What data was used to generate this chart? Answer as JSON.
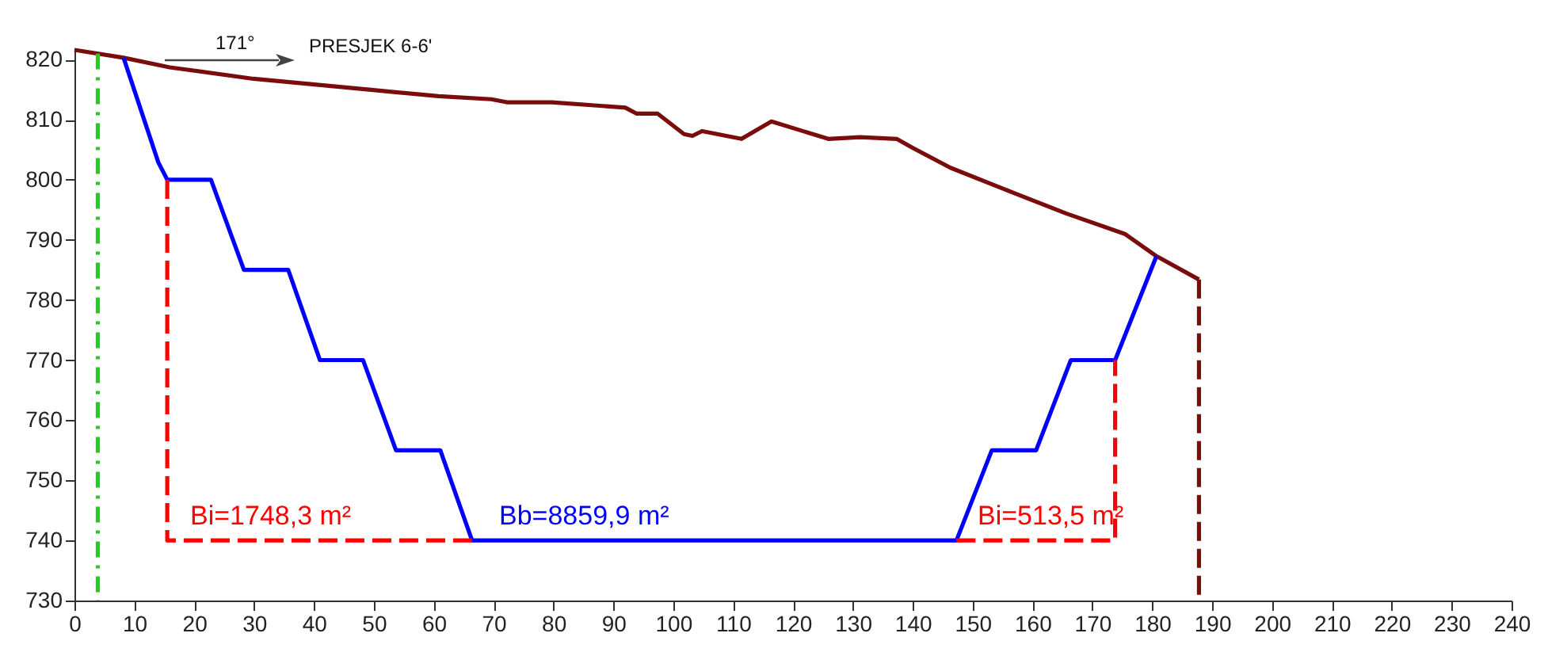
{
  "chart_data": {
    "type": "line",
    "xlim": [
      0,
      240
    ],
    "ylim": [
      730,
      822
    ],
    "xticks": [
      0,
      10,
      20,
      30,
      40,
      50,
      60,
      70,
      80,
      90,
      100,
      110,
      120,
      130,
      140,
      150,
      160,
      170,
      180,
      190,
      200,
      210,
      220,
      230,
      240
    ],
    "yticks": [
      730,
      740,
      750,
      760,
      770,
      780,
      790,
      800,
      810,
      820
    ],
    "grid": false,
    "marker": "none",
    "series": [
      {
        "color": "#7b0c0c",
        "line_style": "solid",
        "x": [
          0,
          8.2,
          15.9,
          29.9,
          49.2,
          60.8,
          69.6,
          72.2,
          79.7,
          92,
          93.9,
          97.4,
          101.8,
          103.2,
          104.8,
          111.4,
          116.4,
          125.9,
          131.2,
          137.3,
          140.2,
          146.3,
          156.9,
          165.6,
          175.4,
          180.7,
          187.8
        ],
        "values": [
          821.6,
          820.3,
          818.7,
          816.8,
          815,
          813.9,
          813.4,
          812.9,
          812.9,
          812,
          811,
          811,
          807.6,
          807.3,
          808.1,
          806.8,
          809.7,
          806.8,
          807.1,
          806.8,
          805.2,
          802,
          797.8,
          794.4,
          791,
          787.3,
          783.4
        ]
      },
      {
        "color": "#7b0c0c",
        "line_style": "dashed",
        "x": [
          187.8,
          187.8
        ],
        "values": [
          783.4,
          730
        ]
      },
      {
        "color": "#0000ff",
        "line_style": "solid",
        "x": [
          8.2,
          14,
          15.5,
          22.8,
          28.3,
          35.7,
          41,
          48.2,
          53.7,
          61.1,
          66.4,
          147.3,
          153.2,
          160.6,
          166.4,
          173.8,
          180.7
        ],
        "values": [
          820.3,
          802.9,
          800,
          800,
          785,
          785,
          770,
          770,
          755,
          755,
          740,
          740,
          755,
          755,
          770,
          770,
          787.3
        ]
      },
      {
        "color": "#ff0000",
        "line_style": "dashed",
        "x": [
          15.5,
          15.5,
          66.4
        ],
        "values": [
          800,
          740,
          740
        ]
      },
      {
        "color": "#ff0000",
        "line_style": "dashed",
        "x": [
          147.3,
          173.8,
          173.8
        ],
        "values": [
          740,
          740,
          770
        ]
      },
      {
        "color": "#22cc22",
        "line_style": "dashdot",
        "x": [
          3.9,
          3.9
        ],
        "values": [
          821,
          730
        ]
      }
    ],
    "annotations": [
      "171°",
      "PRESJEK 6-6'",
      "Bi=1748,3 m²",
      "Bb=8859,9 m²",
      "Bi=513,5 m²"
    ]
  }
}
